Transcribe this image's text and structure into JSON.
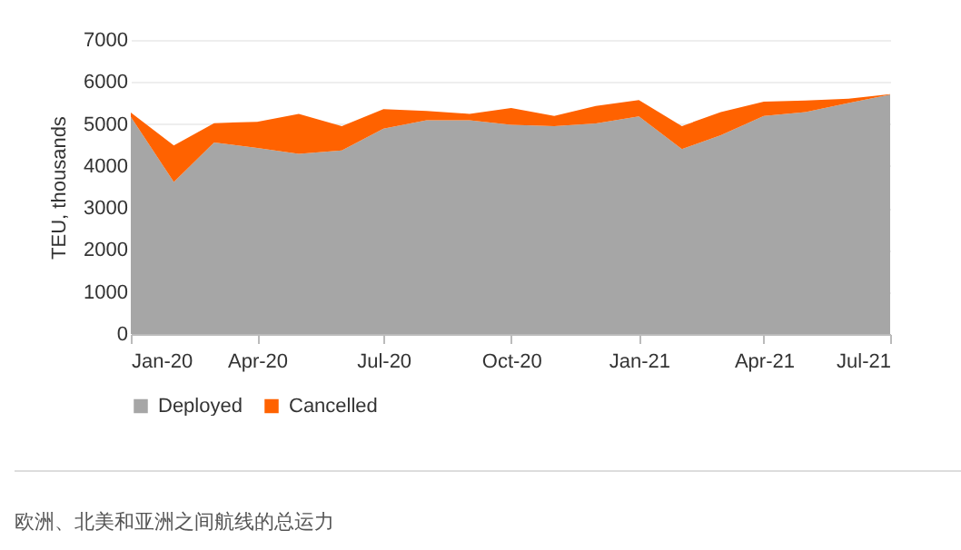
{
  "chart_data": {
    "type": "area",
    "stacked": true,
    "ylabel": "TEU, thousands",
    "x": [
      "2020-01",
      "2020-02",
      "2020-03",
      "2020-04",
      "2020-05",
      "2020-06",
      "2020-07",
      "2020-08",
      "2020-09",
      "2020-10",
      "2020-11",
      "2020-12",
      "2021-01",
      "2021-02",
      "2021-03",
      "2021-04",
      "2021-05",
      "2021-06",
      "2021-07"
    ],
    "series": [
      {
        "name": "Deployed",
        "color": "#a6a6a6",
        "values": [
          5170,
          3620,
          4560,
          4430,
          4290,
          4370,
          4890,
          5090,
          5090,
          4980,
          4950,
          5010,
          5180,
          4400,
          4730,
          5190,
          5280,
          5500,
          5700
        ]
      },
      {
        "name": "Cancelled",
        "color": "#ff6200",
        "values": [
          100,
          870,
          460,
          620,
          950,
          580,
          460,
          220,
          150,
          400,
          240,
          420,
          390,
          550,
          550,
          340,
          280,
          100,
          10
        ]
      }
    ],
    "xlim": [
      "2020-01",
      "2021-07"
    ],
    "xticks": [
      {
        "value": "2020-01",
        "label": "Jan-20"
      },
      {
        "value": "2020-04",
        "label": "Apr-20"
      },
      {
        "value": "2020-07",
        "label": "Jul-20"
      },
      {
        "value": "2020-10",
        "label": "Oct-20"
      },
      {
        "value": "2021-01",
        "label": "Jan-21"
      },
      {
        "value": "2021-04",
        "label": "Apr-21"
      },
      {
        "value": "2021-07",
        "label": "Jul-21"
      }
    ],
    "ylim": [
      0,
      7000
    ],
    "yticks": [
      0,
      1000,
      2000,
      3000,
      4000,
      5000,
      6000,
      7000
    ],
    "grid": "y",
    "legend": "bottom",
    "annotations": [
      "欧洲、北美和亚洲之间航线的总运力"
    ]
  }
}
